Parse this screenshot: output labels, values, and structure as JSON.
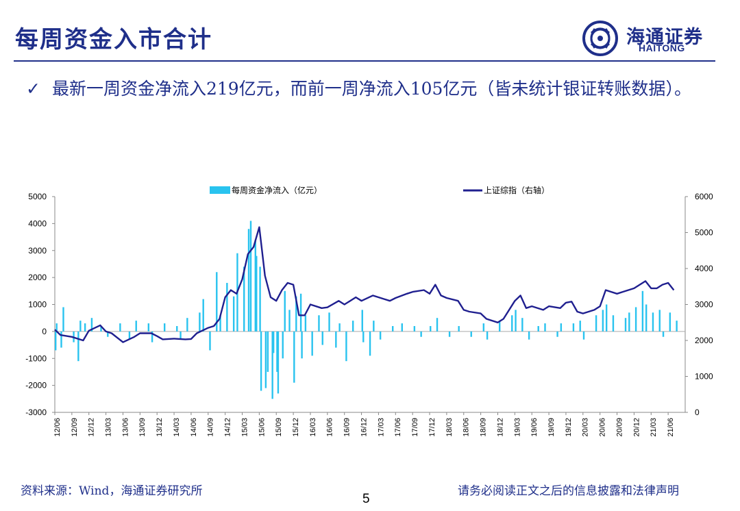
{
  "page": {
    "title": "每周资金入市合计",
    "bullet": "最新一周资金净流入219亿元，而前一周净流入105亿元（皆未统计银证转账数据）。",
    "bullet_icon": "check-icon",
    "source": "资料来源：Wind，海通证券研究所",
    "page_number": "5",
    "disclaimer": "请务必阅读正文之后的信息披露和法律声明"
  },
  "logo": {
    "cn": "海通证券",
    "en": "HAITONG",
    "icon": "haitong-logo-icon"
  },
  "colors": {
    "brand": "#1f2f8a",
    "bar": "#29c3ef",
    "line": "#1f1f8f"
  },
  "chart_data": {
    "type": "bar",
    "title": "",
    "series": [
      {
        "name": "每周资金净流入（亿元）",
        "kind": "bar",
        "axis": "left",
        "color": "#29c3ef"
      },
      {
        "name": "上证综指（右轴）",
        "kind": "line",
        "axis": "right",
        "color": "#1f1f8f"
      }
    ],
    "x_tick_labels": [
      "12/06",
      "12/09",
      "12/12",
      "13/03",
      "13/06",
      "13/09",
      "13/12",
      "14/03",
      "14/06",
      "14/09",
      "14/12",
      "15/03",
      "15/06",
      "15/09",
      "15/12",
      "16/03",
      "16/06",
      "16/09",
      "16/12",
      "17/03",
      "17/06",
      "17/09",
      "17/12",
      "18/03",
      "18/06",
      "18/09",
      "18/12",
      "19/03",
      "19/06",
      "19/09",
      "19/12",
      "20/03",
      "20/06",
      "20/09",
      "20/12",
      "21/03",
      "21/06"
    ],
    "left_axis": {
      "min": -3000,
      "max": 5000,
      "ticks": [
        -3000,
        -2000,
        -1000,
        0,
        1000,
        2000,
        3000,
        4000,
        5000
      ]
    },
    "right_axis": {
      "min": 0,
      "max": 6000,
      "ticks": [
        0,
        1000,
        2000,
        3000,
        4000,
        5000,
        6000
      ]
    },
    "index_path": [
      [
        "12/06",
        2300
      ],
      [
        "12/07",
        2150
      ],
      [
        "12/09",
        2100
      ],
      [
        "12/11",
        2000
      ],
      [
        "12/12",
        2270
      ],
      [
        "13/02",
        2420
      ],
      [
        "13/03",
        2250
      ],
      [
        "13/04",
        2200
      ],
      [
        "13/06",
        1950
      ],
      [
        "13/08",
        2100
      ],
      [
        "13/09",
        2200
      ],
      [
        "13/11",
        2200
      ],
      [
        "13/12",
        2120
      ],
      [
        "14/01",
        2030
      ],
      [
        "14/03",
        2050
      ],
      [
        "14/05",
        2030
      ],
      [
        "14/06",
        2040
      ],
      [
        "14/07",
        2200
      ],
      [
        "14/09",
        2350
      ],
      [
        "14/10",
        2400
      ],
      [
        "14/11",
        2600
      ],
      [
        "14/12",
        3200
      ],
      [
        "15/01",
        3400
      ],
      [
        "15/02",
        3300
      ],
      [
        "15/03",
        3700
      ],
      [
        "15/04",
        4400
      ],
      [
        "15/05",
        4600
      ],
      [
        "15/06",
        5150
      ],
      [
        "15/07",
        3800
      ],
      [
        "15/08",
        3200
      ],
      [
        "15/09",
        3100
      ],
      [
        "15/10",
        3400
      ],
      [
        "15/11",
        3600
      ],
      [
        "15/12",
        3550
      ],
      [
        "16/01",
        2700
      ],
      [
        "16/02",
        2700
      ],
      [
        "16/03",
        3000
      ],
      [
        "16/05",
        2900
      ],
      [
        "16/06",
        2920
      ],
      [
        "16/08",
        3100
      ],
      [
        "16/09",
        3000
      ],
      [
        "16/11",
        3200
      ],
      [
        "16/12",
        3100
      ],
      [
        "17/02",
        3250
      ],
      [
        "17/04",
        3150
      ],
      [
        "17/05",
        3100
      ],
      [
        "17/06",
        3180
      ],
      [
        "17/08",
        3300
      ],
      [
        "17/09",
        3350
      ],
      [
        "17/11",
        3400
      ],
      [
        "17/12",
        3300
      ],
      [
        "18/01",
        3550
      ],
      [
        "18/02",
        3250
      ],
      [
        "18/03",
        3180
      ],
      [
        "18/05",
        3100
      ],
      [
        "18/06",
        2850
      ],
      [
        "18/07",
        2800
      ],
      [
        "18/09",
        2750
      ],
      [
        "18/10",
        2600
      ],
      [
        "18/12",
        2500
      ],
      [
        "19/01",
        2600
      ],
      [
        "19/03",
        3100
      ],
      [
        "19/04",
        3250
      ],
      [
        "19/05",
        2900
      ],
      [
        "19/06",
        2950
      ],
      [
        "19/08",
        2850
      ],
      [
        "19/09",
        2950
      ],
      [
        "19/11",
        2900
      ],
      [
        "19/12",
        3050
      ],
      [
        "20/01",
        3080
      ],
      [
        "20/02",
        2800
      ],
      [
        "20/03",
        2750
      ],
      [
        "20/05",
        2850
      ],
      [
        "20/06",
        2950
      ],
      [
        "20/07",
        3400
      ],
      [
        "20/09",
        3300
      ],
      [
        "20/10",
        3350
      ],
      [
        "20/12",
        3450
      ],
      [
        "21/01",
        3550
      ],
      [
        "21/02",
        3650
      ],
      [
        "21/03",
        3450
      ],
      [
        "21/04",
        3450
      ],
      [
        "21/05",
        3550
      ],
      [
        "21/06",
        3600
      ],
      [
        "21/07",
        3400
      ]
    ],
    "bar_spikes": [
      [
        "12/06",
        -700
      ],
      [
        "12/06",
        300
      ],
      [
        "12/07",
        900
      ],
      [
        "12/07",
        -600
      ],
      [
        "12/09",
        -400
      ],
      [
        "12/10",
        400
      ],
      [
        "12/10",
        -1100
      ],
      [
        "12/11",
        300
      ],
      [
        "12/12",
        500
      ],
      [
        "13/02",
        200
      ],
      [
        "13/03",
        -200
      ],
      [
        "13/05",
        300
      ],
      [
        "13/07",
        -300
      ],
      [
        "13/08",
        400
      ],
      [
        "13/10",
        300
      ],
      [
        "13/11",
        -400
      ],
      [
        "14/01",
        300
      ],
      [
        "14/03",
        200
      ],
      [
        "14/04",
        -300
      ],
      [
        "14/05",
        500
      ],
      [
        "14/07",
        700
      ],
      [
        "14/08",
        1200
      ],
      [
        "14/09",
        -700
      ],
      [
        "14/10",
        2200
      ],
      [
        "14/11",
        600
      ],
      [
        "14/12",
        1800
      ],
      [
        "15/01",
        1300
      ],
      [
        "15/02",
        2900
      ],
      [
        "15/03",
        2400
      ],
      [
        "15/04",
        4100
      ],
      [
        "15/04",
        3800
      ],
      [
        "15/05",
        3400
      ],
      [
        "15/05",
        2800
      ],
      [
        "15/06",
        2400
      ],
      [
        "15/06",
        -2200
      ],
      [
        "15/07",
        -1500
      ],
      [
        "15/07",
        -2100
      ],
      [
        "15/08",
        -2500
      ],
      [
        "15/08",
        -800
      ],
      [
        "15/09",
        -1500
      ],
      [
        "15/09",
        -2300
      ],
      [
        "15/10",
        1500
      ],
      [
        "15/10",
        -1000
      ],
      [
        "15/11",
        800
      ],
      [
        "15/12",
        1300
      ],
      [
        "15/12",
        -1900
      ],
      [
        "16/01",
        1400
      ],
      [
        "16/01",
        -1000
      ],
      [
        "16/02",
        600
      ],
      [
        "16/03",
        -900
      ],
      [
        "16/04",
        600
      ],
      [
        "16/05",
        -500
      ],
      [
        "16/06",
        700
      ],
      [
        "16/07",
        -600
      ],
      [
        "16/08",
        300
      ],
      [
        "16/09",
        -1100
      ],
      [
        "16/10",
        400
      ],
      [
        "16/12",
        800
      ],
      [
        "16/12",
        -400
      ],
      [
        "17/01",
        -900
      ],
      [
        "17/02",
        400
      ],
      [
        "17/03",
        -300
      ],
      [
        "17/05",
        200
      ],
      [
        "17/07",
        300
      ],
      [
        "17/09",
        200
      ],
      [
        "17/10",
        -200
      ],
      [
        "17/12",
        200
      ],
      [
        "18/01",
        500
      ],
      [
        "18/03",
        -200
      ],
      [
        "18/05",
        200
      ],
      [
        "18/07",
        -200
      ],
      [
        "18/09",
        300
      ],
      [
        "18/10",
        -300
      ],
      [
        "18/12",
        400
      ],
      [
        "19/02",
        600
      ],
      [
        "19/03",
        800
      ],
      [
        "19/04",
        500
      ],
      [
        "19/05",
        -300
      ],
      [
        "19/07",
        200
      ],
      [
        "19/08",
        300
      ],
      [
        "19/10",
        -200
      ],
      [
        "19/11",
        300
      ],
      [
        "20/01",
        300
      ],
      [
        "20/02",
        400
      ],
      [
        "20/03",
        -300
      ],
      [
        "20/05",
        600
      ],
      [
        "20/06",
        800
      ],
      [
        "20/07",
        1000
      ],
      [
        "20/08",
        600
      ],
      [
        "20/10",
        500
      ],
      [
        "20/11",
        700
      ],
      [
        "20/12",
        900
      ],
      [
        "21/01",
        1500
      ],
      [
        "21/02",
        1000
      ],
      [
        "21/03",
        700
      ],
      [
        "21/04",
        800
      ],
      [
        "21/05",
        -200
      ],
      [
        "21/06",
        700
      ],
      [
        "21/07",
        400
      ]
    ]
  }
}
